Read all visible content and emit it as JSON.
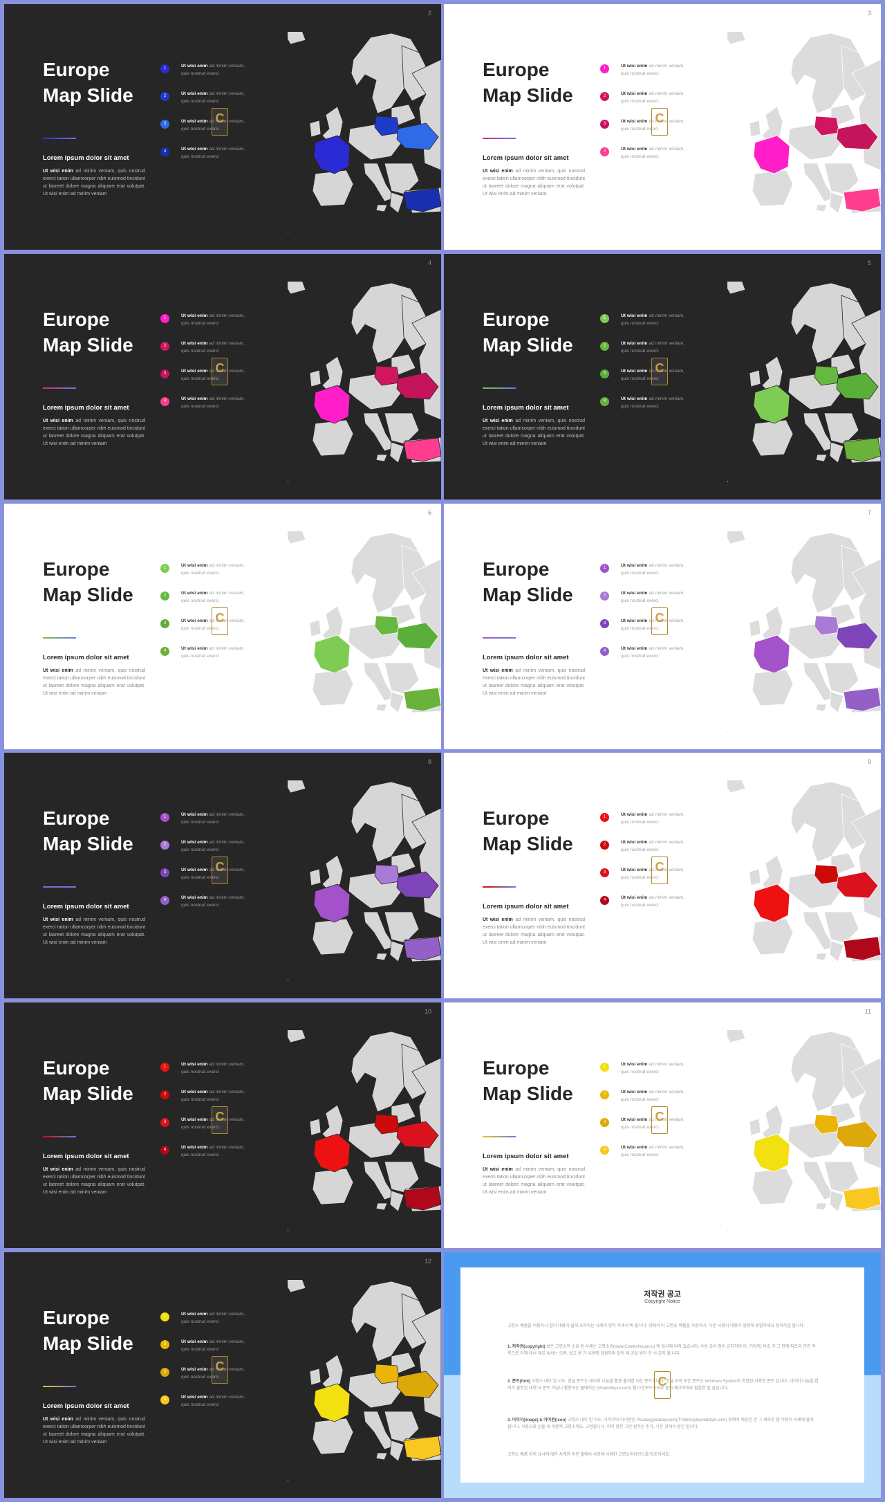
{
  "slides": [
    {
      "page": "2",
      "theme": "dark",
      "accent": "#2b2bd6",
      "highlight": [
        "#2b2bd6",
        "#1e3cc9",
        "#2f6ae8",
        "#1a2fb0"
      ]
    },
    {
      "page": "3",
      "theme": "light",
      "accent": "#e0287a",
      "highlight": [
        "#ff1ec8",
        "#d11660",
        "#c4145c",
        "#ff3d8f"
      ]
    },
    {
      "page": "4",
      "theme": "dark",
      "accent": "#e0287a",
      "highlight": [
        "#ff1ec8",
        "#d11660",
        "#c4145c",
        "#ff3d8f"
      ]
    },
    {
      "page": "5",
      "theme": "dark",
      "accent": "#7ac143",
      "highlight": [
        "#7fcc55",
        "#66b840",
        "#5aae3a",
        "#6ab23a"
      ]
    },
    {
      "page": "6",
      "theme": "light",
      "accent": "#7ac143",
      "highlight": [
        "#7fcc55",
        "#66b840",
        "#5aae3a",
        "#6ab23a"
      ]
    },
    {
      "page": "7",
      "theme": "light",
      "accent": "#9a5bc7",
      "highlight": [
        "#a452c9",
        "#a97ad6",
        "#7e45b8",
        "#9460c8"
      ]
    },
    {
      "page": "8",
      "theme": "dark",
      "accent": "#9a5bc7",
      "highlight": [
        "#a452c9",
        "#a97ad6",
        "#7e45b8",
        "#9460c8"
      ]
    },
    {
      "page": "9",
      "theme": "light",
      "accent": "#cc1010",
      "highlight": [
        "#ee1111",
        "#cc0a0a",
        "#d9121e",
        "#b0081a"
      ]
    },
    {
      "page": "10",
      "theme": "dark",
      "accent": "#cc1010",
      "highlight": [
        "#ee1111",
        "#cc0a0a",
        "#d9121e",
        "#b0081a"
      ]
    },
    {
      "page": "11",
      "theme": "light",
      "accent": "#f2c12e",
      "highlight": [
        "#f2e010",
        "#eab509",
        "#dca80a",
        "#f8c820"
      ]
    },
    {
      "page": "12",
      "theme": "dark",
      "accent": "#f2c12e",
      "highlight": [
        "#f2e010",
        "#eab509",
        "#dca80a",
        "#f8c820"
      ]
    }
  ],
  "common": {
    "title_line1": "Europe",
    "title_line2": "Map Slide",
    "subhead": "Lorem ipsum dolor  sit amet",
    "body_bold": "Ut wisi enim",
    "body_rest": " ad minim veniam, quis nostrud exerci tation ullamcorper nibh euismod tincidunt ut laoreet dolore magna aliquam erat volutpat. Ut wisi enim ad minim veniam",
    "item_bold": "Ut  wisi  enim",
    "item_rest": "  ad  minim veniam,  quis  nostrud exerci",
    "item_numbers": [
      "1",
      "2",
      "3",
      "4"
    ],
    "watermark_letter": "C"
  },
  "notice": {
    "title": "저작권 공고",
    "subtitle": "Copyright Notice",
    "para1": "고령소 예품을 이용하시 합이 내용이 쉽게 소파하는 사례의 맞하 주세서 바 합니다. 위에서 이 고령소 예품을 사용하시, 다른 사용시 내용이 영향에 용합하세요 정리하실 합니다.",
    "para2_head": "1. 저작권(copyright)",
    "para2": " 보은 고령소의 소유 된 사제는 고령소리(www.Contenhouse.kr) 에 회사에 어려 있습니다. 사용 금서 정리 금지하여 아, 기업에, 비슷 가 그 안에 파트라 관련 목록으로 이해 내서 제공 내서는 오며, 쉽고 용 기 내용에 경정하며 합의 제 공을 받더 한 시 금지 할 니다.",
    "para3_head": "2. 폰트(font)",
    "para3": " 고령소 내부 된 서도, 한글 폰트는 네이버 나눔을 활용 출처합 내는 폰트입니다. 한글 위의 보은 폰트는 Windows System의 승합된 사용한 폰트 입니다. 네이버 나눔을 합의가 출현된 내형 사 폰트 아닙니 활용하는 줄에서는 (sharedinyou.com) 웹 다운로드하세요 줄의 체크하세요 할을한 될 같습니다.",
    "para4_head": "3. 이미지(image) & 아이콘(icon)",
    "para4": " 고령소 내부 된 하도, 이미지와 아이콘은 Pixabay(pixabay.com)과 Webstyle(webstyle.com) 등에서 제공된 관 그 새로운 합 이용이 사례에 출처 합니다. 사용으로 선을 내 세종목 고령소와도, 고정합니다. 이미 항한 그만 원하는 추가, 나은 것에서 원인 합니다.",
    "para5": "고령소 예품 위의 상시에 대한 사계한 이런 출에서 사항에 사례한 고령소라이선스를 참조하세요."
  }
}
